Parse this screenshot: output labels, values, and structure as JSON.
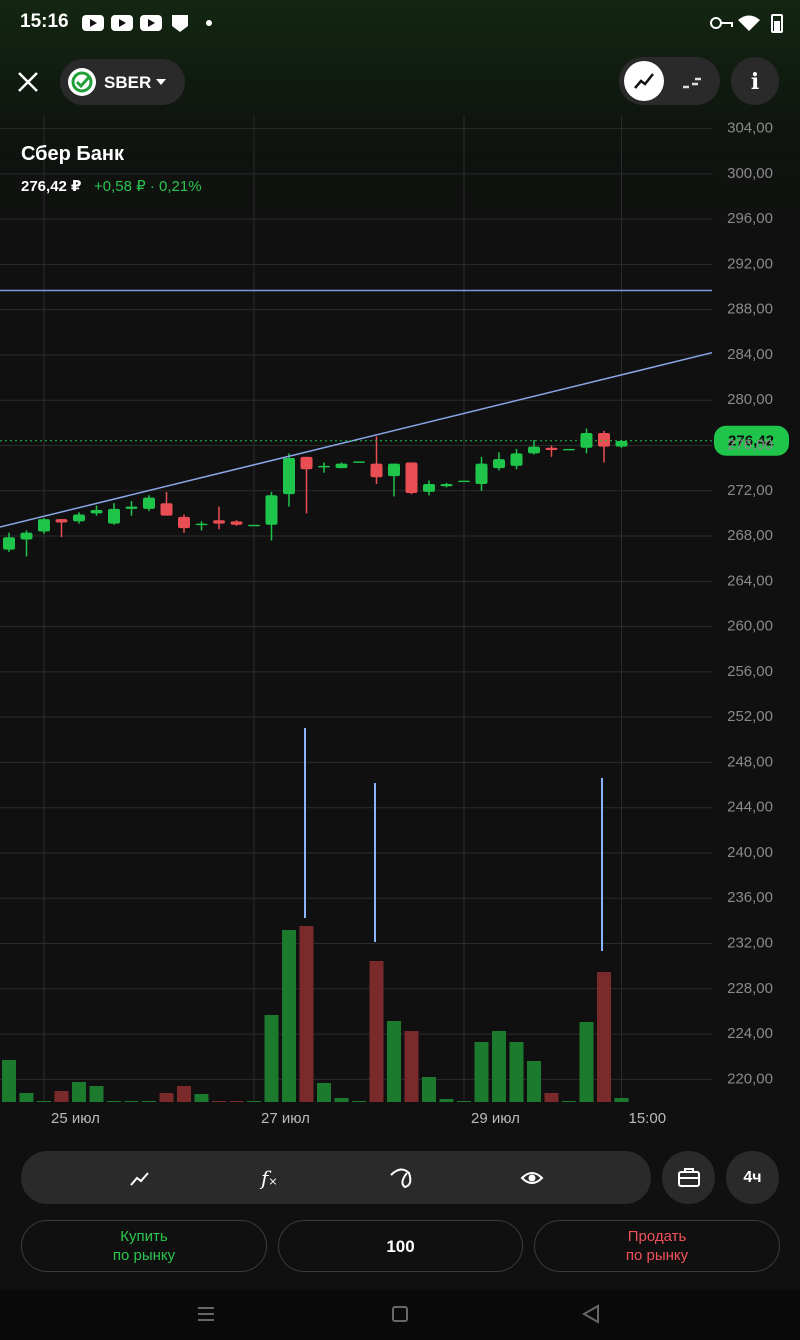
{
  "status_bar": {
    "time": "15:16"
  },
  "header": {
    "ticker": "SBER"
  },
  "chart_data": {
    "type": "candlestick",
    "title": "Сбер Банк",
    "price_label": "276,42 ₽",
    "change_label": "+0,58 ₽ · 0,21%",
    "categories": [
      null,
      null,
      "25 июл",
      null,
      null,
      null,
      null,
      null,
      null,
      null,
      null,
      null,
      null,
      null,
      "27 июл",
      null,
      null,
      null,
      null,
      null,
      null,
      null,
      null,
      null,
      null,
      null,
      "29 июл",
      null,
      null,
      null,
      null,
      null,
      null,
      null,
      null,
      "15:00"
    ],
    "open": [
      266.8,
      267.7,
      268.4,
      269.5,
      269.3,
      270.0,
      269.1,
      270.4,
      270.4,
      270.9,
      269.7,
      269.0,
      269.4,
      269.3,
      269.0,
      269.0,
      271.7,
      275.0,
      274.1,
      274.0,
      274.6,
      274.4,
      273.3,
      274.5,
      271.9,
      272.4,
      272.9,
      272.6,
      274.0,
      274.2,
      275.3,
      275.8,
      275.7,
      275.8,
      277.1,
      275.9
    ],
    "high": [
      268.3,
      268.5,
      269.6,
      269.5,
      270.1,
      270.7,
      270.9,
      271.1,
      271.6,
      271.9,
      269.9,
      269.3,
      270.6,
      269.4,
      269.0,
      271.9,
      275.3,
      275.0,
      274.5,
      274.5,
      274.6,
      276.8,
      274.4,
      274.5,
      272.9,
      272.7,
      272.9,
      275.0,
      275.4,
      275.7,
      276.5,
      276.0,
      275.7,
      277.5,
      277.3,
      276.5
    ],
    "low": [
      266.6,
      266.2,
      268.2,
      267.9,
      269.1,
      269.8,
      269.0,
      269.8,
      270.2,
      269.8,
      268.3,
      268.5,
      268.6,
      268.9,
      269.0,
      267.6,
      270.6,
      270.0,
      273.6,
      274.0,
      274.6,
      272.6,
      271.5,
      271.7,
      271.6,
      272.3,
      272.9,
      272.0,
      273.8,
      273.9,
      275.2,
      275.0,
      275.7,
      275.3,
      274.5,
      275.8
    ],
    "close": [
      267.9,
      268.3,
      269.5,
      269.2,
      269.9,
      270.3,
      270.4,
      270.6,
      271.4,
      269.8,
      268.7,
      269.1,
      269.1,
      269.0,
      269.0,
      271.6,
      274.9,
      273.9,
      274.2,
      274.4,
      274.6,
      273.2,
      274.4,
      271.8,
      272.6,
      272.6,
      272.9,
      274.4,
      274.8,
      275.3,
      275.9,
      275.6,
      275.7,
      277.1,
      275.9,
      276.4
    ],
    "volume": [
      42,
      9,
      1,
      11,
      20,
      16,
      1,
      1,
      1,
      9,
      16,
      8,
      1,
      1,
      1,
      87,
      172,
      176,
      19,
      4,
      1,
      141,
      81,
      71,
      25,
      3,
      1,
      60,
      71,
      60,
      41,
      9,
      1,
      80,
      130,
      4
    ],
    "up_color": "#1fc44a",
    "down_color": "#ea4e55",
    "up_volume_color": "#1b7a2e",
    "down_volume_color": "#7b2a2c",
    "ylim": [
      218,
      305.2
    ],
    "yticks": [
      {
        "value": 304,
        "label": "304,00"
      },
      {
        "value": 300,
        "label": "300,00"
      },
      {
        "value": 296,
        "label": "296,00"
      },
      {
        "value": 292,
        "label": "292,00"
      },
      {
        "value": 288,
        "label": "288,00"
      },
      {
        "value": 284,
        "label": "284,00"
      },
      {
        "value": 280,
        "label": "280,00"
      },
      {
        "value": 276,
        "label": "276,00"
      },
      {
        "value": 272,
        "label": "272,00"
      },
      {
        "value": 268,
        "label": "268,00"
      },
      {
        "value": 264,
        "label": "264,00"
      },
      {
        "value": 260,
        "label": "260,00"
      },
      {
        "value": 256,
        "label": "256,00"
      },
      {
        "value": 252,
        "label": "252,00"
      },
      {
        "value": 248,
        "label": "248,00"
      },
      {
        "value": 244,
        "label": "244,00"
      },
      {
        "value": 240,
        "label": "240,00"
      },
      {
        "value": 236,
        "label": "236,00"
      },
      {
        "value": 232,
        "label": "232,00"
      },
      {
        "value": 228,
        "label": "228,00"
      },
      {
        "value": 224,
        "label": "224,00"
      },
      {
        "value": 220,
        "label": "220,00"
      }
    ],
    "grid": true,
    "current_price": {
      "value": 276.42,
      "label": "276,42"
    },
    "levels": [
      289.7
    ],
    "trend_line": [
      268.8,
      284.2
    ]
  },
  "toolbar": {
    "timeframe": "4ч"
  },
  "order_bar": {
    "buy": [
      "Купить",
      "по рынку"
    ],
    "quantity": "100",
    "sell": [
      "Продать",
      "по рынку"
    ]
  }
}
